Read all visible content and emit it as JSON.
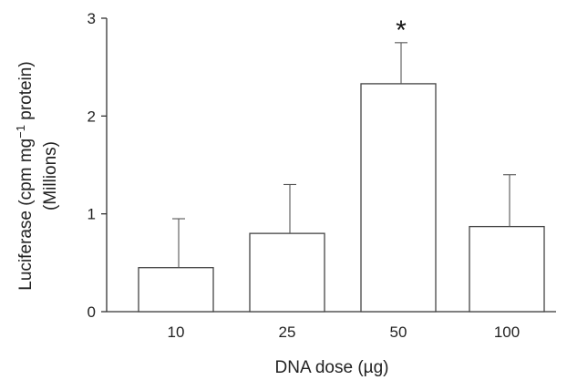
{
  "chart_data": {
    "type": "bar",
    "categories": [
      "10",
      "25",
      "50",
      "100"
    ],
    "values": [
      0.45,
      0.8,
      2.33,
      0.87
    ],
    "errors": [
      0.5,
      0.5,
      0.42,
      0.53
    ],
    "annotations": [
      {
        "category": "50",
        "text": "*"
      }
    ],
    "xlabel": "DNA dose (µg)",
    "ylabel_line1": "Luciferase (cpm mg",
    "ylabel_sup": "−1",
    "ylabel_line1_end": " protein)",
    "ylabel_line2": "(Millions)",
    "ylim": [
      0,
      3
    ],
    "yticks": [
      "0",
      "1",
      "2",
      "3"
    ],
    "grid": false,
    "legend": "none"
  }
}
